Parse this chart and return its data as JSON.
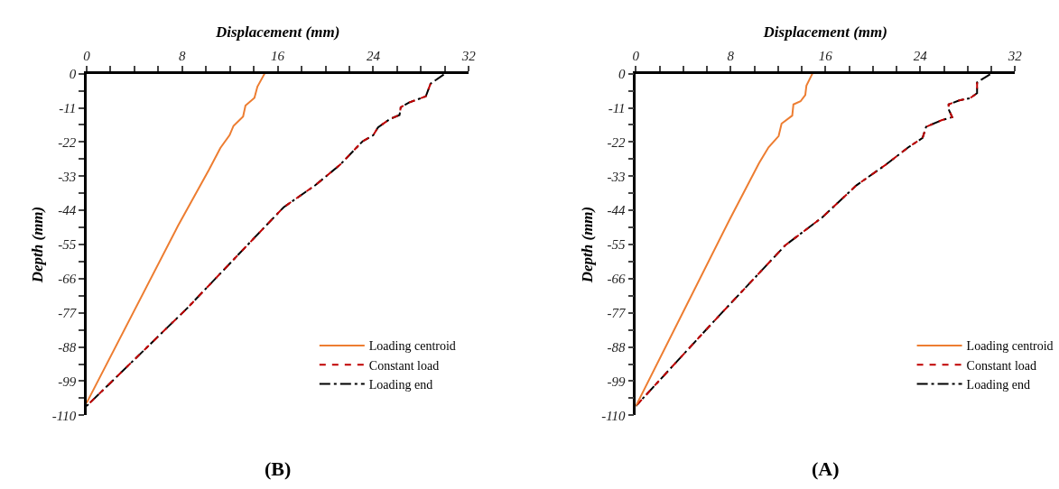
{
  "chart_data": [
    {
      "type": "line",
      "xlabel": "Displacement (mm)",
      "ylabel": "Depth (mm)",
      "annotations": [
        "(B)"
      ],
      "legend": "bottom right",
      "marker": "none",
      "xlim": [
        0,
        32
      ],
      "ylim": [
        -110,
        0
      ],
      "xticks": [
        0,
        {
          "value": 2,
          "label": null
        },
        {
          "value": 4,
          "label": null
        },
        {
          "value": 6,
          "label": null
        },
        8,
        {
          "value": 10,
          "label": null
        },
        {
          "value": 12,
          "label": null
        },
        {
          "value": 14,
          "label": null
        },
        16,
        {
          "value": 18,
          "label": null
        },
        {
          "value": 20,
          "label": null
        },
        {
          "value": 22,
          "label": null
        },
        24,
        {
          "value": 26,
          "label": null
        },
        {
          "value": 28,
          "label": null
        },
        {
          "value": 30,
          "label": null
        },
        32
      ],
      "yticks": [
        0,
        {
          "value": -5.5,
          "label": null
        },
        -11,
        {
          "value": -16.5,
          "label": null
        },
        -22,
        {
          "value": -27.5,
          "label": null
        },
        -33,
        {
          "value": -38.5,
          "label": null
        },
        -44,
        {
          "value": -49.5,
          "label": null
        },
        -55,
        {
          "value": -60.5,
          "label": null
        },
        -66,
        {
          "value": -71.5,
          "label": null
        },
        -77,
        {
          "value": -82.5,
          "label": null
        },
        -88,
        {
          "value": -93.5,
          "label": null
        },
        -99,
        {
          "value": -104.5,
          "label": null
        },
        -110
      ],
      "series": [
        {
          "name": "Loading centroid",
          "color": "#ed7d31",
          "line_style": "solid",
          "x": [
            14.9,
            14.3,
            14.05,
            13.3,
            13.1,
            12.3,
            11.97,
            11.2,
            10.25,
            7.65,
            0
          ],
          "values": [
            0,
            -4.2,
            -7.8,
            -10.3,
            -13.8,
            -16.8,
            -19.8,
            -23.9,
            -30.9,
            -49,
            -106
          ]
        },
        {
          "name": "Constant load",
          "color": "#c00000",
          "line_style": "dashed",
          "x": [
            28.8,
            28.4,
            27.0,
            26.3,
            26.2,
            25.4,
            24.4,
            24.0,
            23.1,
            21.2,
            19.15,
            16.5,
            15,
            8.4,
            0
          ],
          "values": [
            -3.2,
            -7.3,
            -9.3,
            -10.8,
            -13.3,
            -14.6,
            -17.3,
            -19.8,
            -21.8,
            -29.4,
            -35.9,
            -43,
            -49,
            -75.6,
            -107
          ]
        },
        {
          "name": "Loading end",
          "color": "#000000",
          "line_style": "dashdot",
          "x": [
            29.9,
            28.8,
            28.4,
            27.0,
            26.3,
            26.2,
            25.4,
            24.4,
            24.0,
            23.1,
            21.2,
            19.15,
            16.5,
            15,
            8.4,
            0
          ],
          "values": [
            -0.3,
            -3.2,
            -7.3,
            -9.3,
            -10.8,
            -13.3,
            -14.6,
            -17.3,
            -19.8,
            -21.8,
            -29.4,
            -35.9,
            -43,
            -49,
            -75.6,
            -107
          ]
        }
      ]
    },
    {
      "type": "line",
      "xlabel": "Displacement (mm)",
      "ylabel": "Depth (mm)",
      "annotations": [
        "(A)"
      ],
      "legend": "bottom right",
      "marker": "none",
      "xlim": [
        0,
        32
      ],
      "ylim": [
        -110,
        0
      ],
      "xticks": [
        0,
        {
          "value": 2,
          "label": null
        },
        {
          "value": 4,
          "label": null
        },
        {
          "value": 6,
          "label": null
        },
        8,
        {
          "value": 10,
          "label": null
        },
        {
          "value": 12,
          "label": null
        },
        {
          "value": 14,
          "label": null
        },
        16,
        {
          "value": 18,
          "label": null
        },
        {
          "value": 20,
          "label": null
        },
        {
          "value": 22,
          "label": null
        },
        24,
        {
          "value": 26,
          "label": null
        },
        {
          "value": 28,
          "label": null
        },
        {
          "value": 30,
          "label": null
        },
        32
      ],
      "yticks": [
        0,
        {
          "value": -5.5,
          "label": null
        },
        -11,
        {
          "value": -16.5,
          "label": null
        },
        -22,
        {
          "value": -27.5,
          "label": null
        },
        -33,
        {
          "value": -38.5,
          "label": null
        },
        -44,
        {
          "value": -49.5,
          "label": null
        },
        -55,
        {
          "value": -60.5,
          "label": null
        },
        -66,
        {
          "value": -71.5,
          "label": null
        },
        -77,
        {
          "value": -82.5,
          "label": null
        },
        -88,
        {
          "value": -93.5,
          "label": null
        },
        -99,
        {
          "value": -104.5,
          "label": null
        },
        -110
      ],
      "series": [
        {
          "name": "Loading centroid",
          "color": "#ed7d31",
          "line_style": "solid",
          "x": [
            14.9,
            14.4,
            14.3,
            13.9,
            13.3,
            13.2,
            12.3,
            12.05,
            11.2,
            10.4,
            7.95,
            0
          ],
          "values": [
            0,
            -3.8,
            -6.9,
            -8.9,
            -9.9,
            -13.5,
            -16.1,
            -20.1,
            -23.7,
            -28.8,
            -46.7,
            -107
          ]
        },
        {
          "name": "Constant load",
          "color": "#c00000",
          "line_style": "dashed",
          "x": [
            28.8,
            28.8,
            28.2,
            27.3,
            26.4,
            26.4,
            26.7,
            25.8,
            24.5,
            24.2,
            23.0,
            21.1,
            18.6,
            15.75,
            12.6,
            6.57,
            0
          ],
          "values": [
            -2.8,
            -6.3,
            -7.9,
            -8.6,
            -9.9,
            -11.5,
            -14.0,
            -15.0,
            -17.1,
            -20.7,
            -23.7,
            -29.3,
            -36.0,
            -46.2,
            -55.3,
            -79.8,
            -107
          ]
        },
        {
          "name": "Loading end",
          "color": "#000000",
          "line_style": "dashdot",
          "x": [
            29.9,
            28.8,
            28.8,
            28.2,
            27.3,
            26.4,
            26.4,
            26.7,
            25.8,
            24.5,
            24.2,
            23.0,
            21.1,
            18.6,
            15.75,
            12.6,
            6.57,
            0
          ],
          "values": [
            -0.2,
            -2.8,
            -6.3,
            -7.9,
            -8.6,
            -9.9,
            -11.5,
            -14.0,
            -15.0,
            -17.1,
            -20.7,
            -23.7,
            -29.3,
            -36.0,
            -46.2,
            -55.3,
            -79.8,
            -107
          ]
        }
      ]
    }
  ]
}
